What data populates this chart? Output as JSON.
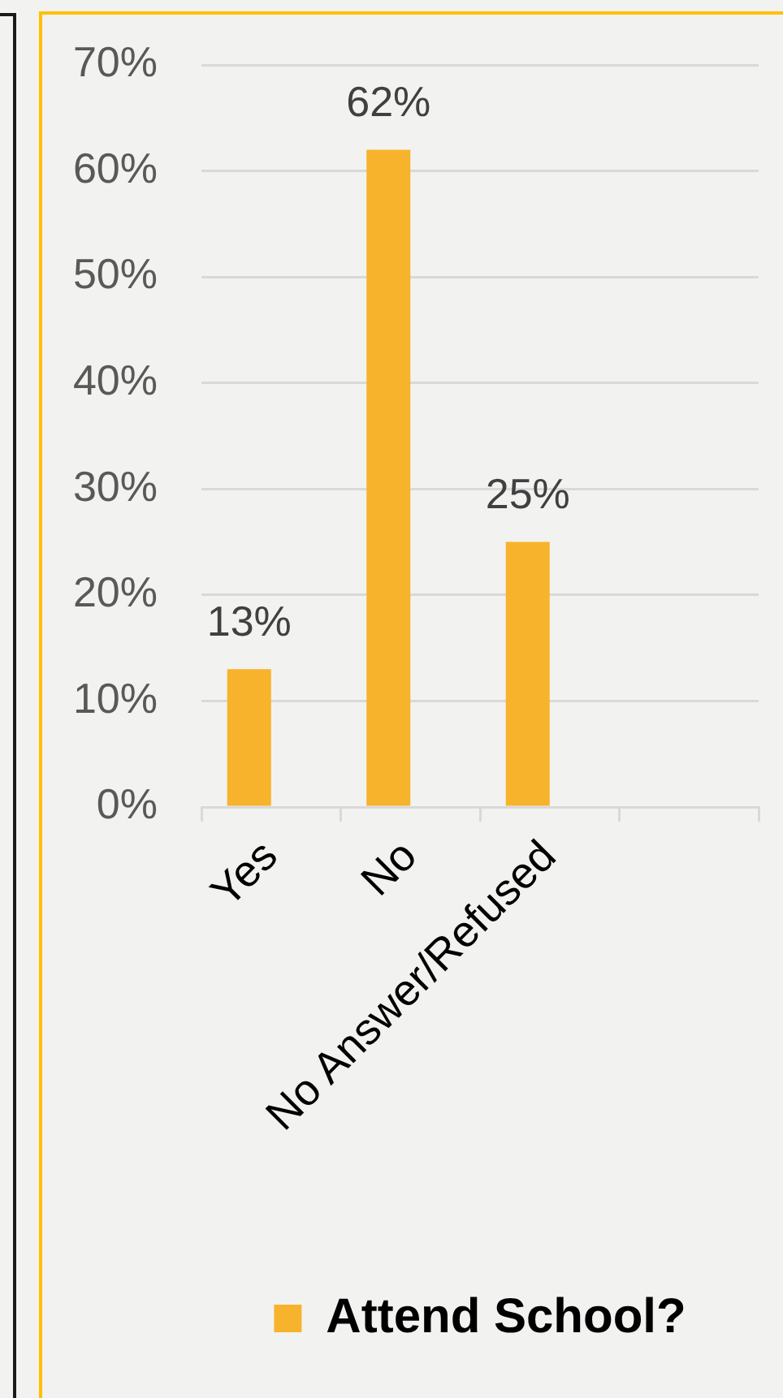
{
  "chart_data": {
    "type": "bar",
    "categories": [
      "Yes",
      "No",
      "No Answer/Refused",
      null
    ],
    "series": [
      {
        "name": "Attend School?",
        "color": "#f7b32b",
        "values": [
          13,
          62,
          25,
          null
        ],
        "value_labels": [
          "13%",
          "62%",
          "25%",
          null
        ]
      }
    ],
    "ylim": [
      0,
      70
    ],
    "yticks": [
      {
        "value": 0,
        "label": "0%"
      },
      {
        "value": 10,
        "label": "10%"
      },
      {
        "value": 20,
        "label": "20%"
      },
      {
        "value": 30,
        "label": "30%"
      },
      {
        "value": 40,
        "label": "40%"
      },
      {
        "value": 50,
        "label": "50%"
      },
      {
        "value": 60,
        "label": "60%"
      },
      {
        "value": 70,
        "label": "70%"
      }
    ],
    "grid": "y",
    "legend": "bottom"
  }
}
